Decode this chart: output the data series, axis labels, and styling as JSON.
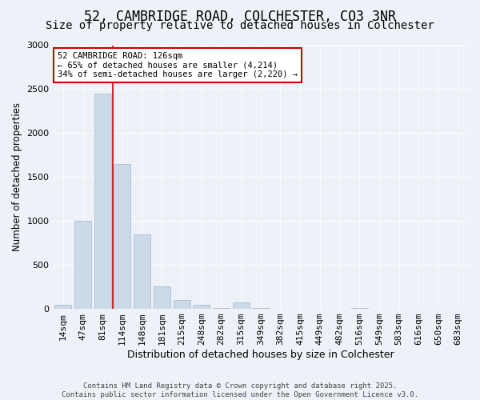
{
  "title": "52, CAMBRIDGE ROAD, COLCHESTER, CO3 3NR",
  "subtitle": "Size of property relative to detached houses in Colchester",
  "xlabel": "Distribution of detached houses by size in Colchester",
  "ylabel": "Number of detached properties",
  "categories": [
    "14sqm",
    "47sqm",
    "81sqm",
    "114sqm",
    "148sqm",
    "181sqm",
    "215sqm",
    "248sqm",
    "282sqm",
    "315sqm",
    "349sqm",
    "382sqm",
    "415sqm",
    "449sqm",
    "482sqm",
    "516sqm",
    "549sqm",
    "583sqm",
    "616sqm",
    "650sqm",
    "683sqm"
  ],
  "values": [
    50,
    1000,
    2450,
    1650,
    850,
    260,
    100,
    50,
    10,
    70,
    10,
    0,
    0,
    0,
    0,
    10,
    0,
    0,
    0,
    0,
    0
  ],
  "bar_color": "#ccd9e8",
  "bar_edgecolor": "#a8bfd4",
  "vline_x_index": 2.5,
  "annotation_text_line1": "52 CAMBRIDGE ROAD: 126sqm",
  "annotation_text_line2": "← 65% of detached houses are smaller (4,214)",
  "annotation_text_line3": "34% of semi-detached houses are larger (2,220) →",
  "annotation_box_facecolor": "#ffffff",
  "annotation_box_edgecolor": "#cc0000",
  "vline_color": "#cc0000",
  "footnote_line1": "Contains HM Land Registry data © Crown copyright and database right 2025.",
  "footnote_line2": "Contains public sector information licensed under the Open Government Licence v3.0.",
  "background_color": "#eef2f8",
  "grid_color": "#ffffff",
  "ylim": [
    0,
    3000
  ],
  "yticks": [
    0,
    500,
    1000,
    1500,
    2000,
    2500,
    3000
  ],
  "title_fontsize": 12,
  "subtitle_fontsize": 10,
  "xlabel_fontsize": 9,
  "ylabel_fontsize": 8.5,
  "tick_fontsize": 8,
  "annot_fontsize": 7.5,
  "footnote_fontsize": 6.5
}
